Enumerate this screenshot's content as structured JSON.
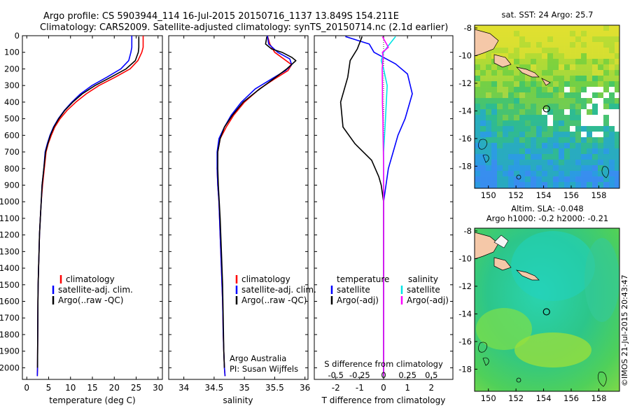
{
  "header": {
    "line1": "Argo profile: CS 5903944_114 16-Jul-2015 20150716_1137 13.849S 154.211E",
    "line2": "Climatology: CARS2009. Satellite-adjusted climatology: synTS_20150714.nc (2.1d earlier)"
  },
  "credit": "©IMOS 21-Jul-2015 20:43:47",
  "colors": {
    "climatology": "#ff0000",
    "satellite": "#0000ff",
    "argo": "#000000",
    "sat_salinity": "#00e5e5",
    "argo_salinity": "#ff00ff"
  },
  "chart_data": [
    {
      "type": "line",
      "name": "temperature-profile",
      "xlabel": "temperature (deg C)",
      "xlim": [
        -1,
        31
      ],
      "xticks": [
        0,
        5,
        10,
        15,
        20,
        25,
        30
      ],
      "ylim": [
        2070,
        0
      ],
      "yticks": [
        0,
        100,
        200,
        300,
        400,
        500,
        600,
        700,
        800,
        900,
        1000,
        1100,
        1200,
        1300,
        1400,
        1500,
        1600,
        1700,
        1800,
        1900,
        2000
      ],
      "legend": [
        "climatology",
        "satellite-adj. clim.",
        "Argo(..raw -QC)"
      ],
      "series": [
        {
          "name": "climatology",
          "color": "#ff0000",
          "x": [
            26.6,
            26.6,
            26.3,
            25.4,
            23.6,
            20.2,
            16.5,
            13.6,
            11.2,
            9.2,
            7.6,
            6.4,
            5.6,
            4.9,
            4.4,
            4.0,
            3.6,
            3.3,
            3.1,
            2.9,
            2.8,
            2.7,
            2.6,
            2.55,
            2.5,
            2.45,
            2.4
          ],
          "y": [
            0,
            70,
            100,
            150,
            200,
            250,
            300,
            350,
            400,
            450,
            500,
            550,
            600,
            650,
            700,
            800,
            900,
            1000,
            1100,
            1200,
            1300,
            1400,
            1500,
            1600,
            1800,
            2000,
            2050
          ]
        },
        {
          "name": "satellite-adj. clim.",
          "color": "#0000ff",
          "x": [
            24.0,
            24.0,
            23.8,
            23.3,
            21.5,
            18.3,
            14.9,
            12.3,
            10.3,
            8.6,
            7.2,
            6.1,
            5.3,
            4.7,
            4.2,
            3.9,
            3.5,
            3.3,
            3.1,
            2.9,
            2.8,
            2.7,
            2.6,
            2.55,
            2.5,
            2.45,
            2.4
          ],
          "y": [
            0,
            70,
            100,
            150,
            200,
            250,
            300,
            350,
            400,
            450,
            500,
            550,
            600,
            650,
            700,
            800,
            900,
            1000,
            1100,
            1200,
            1300,
            1400,
            1500,
            1600,
            1800,
            2000,
            2050
          ]
        },
        {
          "name": "Argo(..raw -QC)",
          "color": "#000000",
          "x": [
            25.6,
            25.6,
            25.5,
            24.8,
            22.7,
            19.2,
            15.6,
            12.7,
            10.5,
            8.7,
            7.3,
            6.2,
            5.4,
            4.8,
            4.3,
            3.9,
            3.5,
            3.3,
            3.1,
            2.9,
            2.8,
            2.7,
            2.6,
            2.55,
            2.5,
            2.45
          ],
          "y": [
            5,
            70,
            100,
            150,
            200,
            250,
            300,
            350,
            400,
            450,
            500,
            550,
            600,
            650,
            700,
            800,
            900,
            1000,
            1100,
            1200,
            1300,
            1400,
            1500,
            1600,
            1800,
            2000
          ]
        }
      ]
    },
    {
      "type": "line",
      "name": "salinity-profile",
      "xlabel": "salinity",
      "xlim": [
        33.75,
        36.05
      ],
      "xticks": [
        34,
        34.5,
        35,
        35.5,
        36
      ],
      "ylim": [
        2070,
        0
      ],
      "legend": [
        "climatology",
        "satellite-adj. clim.",
        "Argo(..raw -QC)"
      ],
      "series": [
        {
          "name": "climatology",
          "color": "#ff0000",
          "x": [
            35.38,
            35.42,
            35.5,
            35.65,
            35.78,
            35.72,
            35.5,
            35.25,
            35.0,
            34.82,
            34.7,
            34.6,
            34.56,
            34.55,
            34.56,
            34.58,
            34.6,
            34.62,
            34.64,
            34.65,
            34.66,
            34.67,
            34.68
          ],
          "y": [
            0,
            50,
            100,
            140,
            175,
            210,
            260,
            320,
            400,
            480,
            550,
            620,
            700,
            800,
            900,
            1000,
            1200,
            1400,
            1600,
            1800,
            1900,
            2000,
            2050
          ]
        },
        {
          "name": "satellite-adj. clim.",
          "color": "#0000ff",
          "x": [
            35.38,
            35.4,
            35.55,
            35.75,
            35.78,
            35.68,
            35.45,
            35.18,
            34.95,
            34.78,
            34.67,
            34.58,
            34.55,
            34.55,
            34.56,
            34.58,
            34.6,
            34.62,
            34.64,
            34.65,
            34.66,
            34.67,
            34.68
          ],
          "y": [
            0,
            50,
            100,
            140,
            175,
            210,
            260,
            320,
            400,
            480,
            550,
            620,
            700,
            800,
            900,
            1000,
            1200,
            1400,
            1600,
            1800,
            1900,
            2000,
            2050
          ]
        },
        {
          "name": "Argo(..raw -QC)",
          "color": "#000000",
          "x": [
            35.37,
            35.35,
            35.45,
            35.62,
            35.78,
            35.85,
            35.7,
            35.48,
            35.22,
            34.98,
            34.8,
            34.67,
            34.6,
            34.56,
            34.56,
            34.57,
            34.6,
            34.62,
            34.64,
            34.65,
            34.66,
            34.67
          ],
          "y": [
            5,
            50,
            80,
            100,
            130,
            150,
            200,
            260,
            330,
            400,
            480,
            550,
            620,
            700,
            800,
            900,
            1100,
            1300,
            1500,
            1700,
            1900,
            2000
          ]
        }
      ],
      "annotations": [
        "Argo Australia",
        "PI: Susan Wijffels"
      ]
    },
    {
      "type": "line",
      "name": "difference-profile",
      "xlabel_top": "S difference from climatology",
      "xticks_top": [
        -0.5,
        -0.25,
        0,
        0.25,
        0.5
      ],
      "xlabel": "T difference from climatology",
      "xlim": [
        -2.9,
        2.9
      ],
      "xticks": [
        -2,
        -1,
        0,
        1,
        2
      ],
      "ylim": [
        2070,
        0
      ],
      "legend_titles": [
        "temperature",
        "salinity"
      ],
      "legend": [
        "satellite",
        "Argo(-adj)",
        "satellite",
        "Argo(-adj)"
      ],
      "series": [
        {
          "name": "temperature satellite",
          "color": "#0000ff",
          "x": [
            -1.6,
            -0.6,
            -0.4,
            0.5,
            1.0,
            1.2,
            0.9,
            0.6,
            0.4,
            0.2,
            0.1,
            0.0,
            0.0,
            0.0,
            0.0
          ],
          "y": [
            5,
            50,
            100,
            170,
            230,
            350,
            500,
            600,
            700,
            800,
            900,
            1000,
            1200,
            1600,
            2050
          ]
        },
        {
          "name": "temperature Argo(-adj)",
          "color": "#000000",
          "x": [
            -0.9,
            -1.1,
            -1.4,
            -1.5,
            -1.8,
            -1.7,
            -1.2,
            -0.5,
            -0.2,
            -0.1,
            0.0,
            0.0,
            0.0,
            0.0
          ],
          "y": [
            5,
            80,
            150,
            250,
            400,
            550,
            650,
            750,
            850,
            900,
            1000,
            1200,
            1600,
            2050
          ]
        },
        {
          "name": "salinity satellite",
          "color": "#00e5e5",
          "x": [
            0.5,
            0.2,
            0.0,
            -0.1,
            0.0,
            0.15,
            0.08,
            0.0,
            0.0,
            0.0,
            0.0,
            0.0
          ],
          "y": [
            5,
            60,
            100,
            150,
            200,
            300,
            500,
            700,
            900,
            1100,
            1600,
            2050
          ]
        },
        {
          "name": "salinity Argo(-adj)",
          "color": "#ff00ff",
          "x": [
            -0.05,
            0.2,
            -0.05,
            -0.02,
            -0.06,
            -0.05,
            -0.05,
            -0.03,
            -0.02,
            -0.01,
            0.0,
            0.0,
            0.0
          ],
          "y": [
            5,
            70,
            100,
            130,
            200,
            300,
            400,
            500,
            600,
            700,
            800,
            1000,
            2050
          ]
        }
      ]
    },
    {
      "type": "heatmap",
      "name": "sst-map",
      "title": "sat. SST: 24 Argo: 25.7",
      "xticks": [
        150,
        152,
        154,
        156,
        158
      ],
      "yticks": [
        -8,
        -10,
        -12,
        -14,
        -16,
        -18
      ],
      "xlim": [
        149,
        159.5
      ],
      "ylim": [
        -19.6,
        -7.8
      ],
      "marker": {
        "lon": 154.211,
        "lat": -13.849
      }
    },
    {
      "type": "heatmap",
      "name": "sla-map",
      "title": "Altim. SLA: -0.048",
      "subtitle": "Argo h1000: -0.2 h2000: -0.21",
      "xticks": [
        150,
        152,
        154,
        156,
        158
      ],
      "yticks": [
        -8,
        -10,
        -12,
        -14,
        -16,
        -18
      ],
      "xlim": [
        149,
        159.5
      ],
      "ylim": [
        -19.6,
        -7.8
      ],
      "marker": {
        "lon": 154.211,
        "lat": -13.849
      }
    }
  ]
}
